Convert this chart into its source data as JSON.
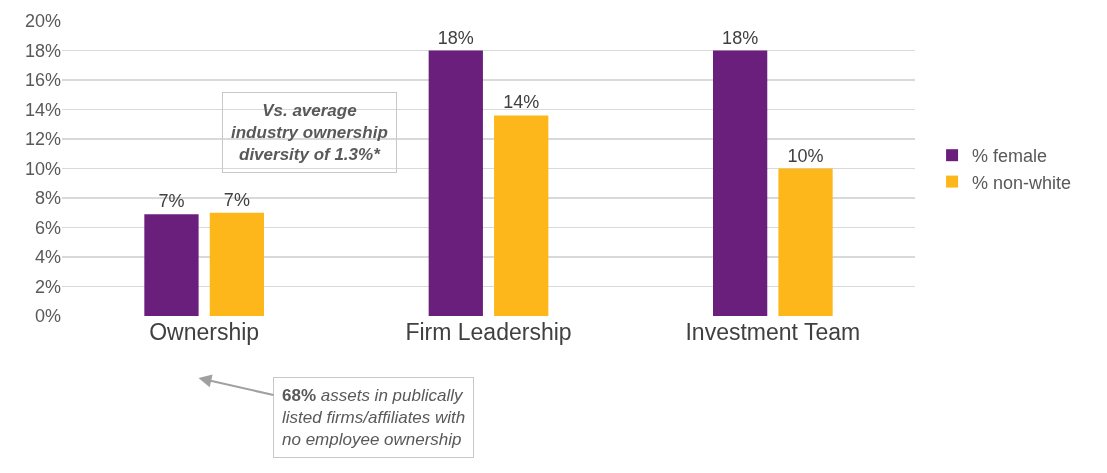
{
  "chart_data": {
    "type": "bar",
    "categories": [
      "Ownership",
      "Firm Leadership",
      "Investment Team"
    ],
    "series": [
      {
        "name": "% female",
        "color": "#6b1f7c",
        "values": [
          6.9,
          18,
          18
        ],
        "value_labels": [
          "7%",
          "18%",
          "18%"
        ]
      },
      {
        "name": "% non-white",
        "color": "#fdb71a",
        "values": [
          7.0,
          13.6,
          10
        ],
        "value_labels": [
          "7%",
          "14%",
          "10%"
        ]
      }
    ],
    "ylim": [
      0,
      20
    ],
    "yticks": [
      {
        "value": 0,
        "label": "0%"
      },
      {
        "value": 2,
        "label": "2%"
      },
      {
        "value": 4,
        "label": "4%"
      },
      {
        "value": 6,
        "label": "6%"
      },
      {
        "value": 8,
        "label": "8%"
      },
      {
        "value": 10,
        "label": "10%"
      },
      {
        "value": 12,
        "label": "12%"
      },
      {
        "value": 14,
        "label": "14%"
      },
      {
        "value": 16,
        "label": "16%"
      },
      {
        "value": 18,
        "label": "18%"
      },
      {
        "value": 20,
        "label": "20%"
      }
    ],
    "grid": "y",
    "legend": "right",
    "annotations": [
      "Vs. average industry ownership diversity of 1.3%*",
      "68% assets in publically listed firms/affiliates with no employee ownership"
    ]
  }
}
